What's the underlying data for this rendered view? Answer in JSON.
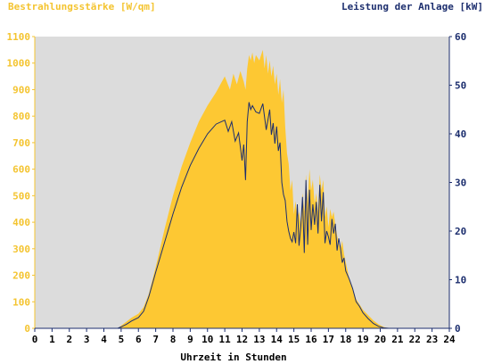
{
  "header": {
    "left_axis_title": "Bestrahlungsstärke [W/qm]",
    "right_axis_title": "Leistung der Anlage [kW]"
  },
  "chart_data": {
    "type": "area",
    "xlabel": "Uhrzeit in Stunden",
    "ylabel_left": "Bestrahlungsstärke [W/qm]",
    "ylabel_right": "Leistung der Anlage [kW]",
    "xlim": [
      0,
      24
    ],
    "ylim_left": [
      0,
      1100
    ],
    "ylim_right": [
      0,
      60
    ],
    "x_ticks": [
      "0",
      "1",
      "2",
      "3",
      "4",
      "5",
      "6",
      "7",
      "8",
      "9",
      "10",
      "11",
      "12",
      "13",
      "14",
      "15",
      "16",
      "17",
      "18",
      "19",
      "20",
      "21",
      "22",
      "23",
      "24"
    ],
    "y_ticks_left": [
      "0",
      "100",
      "200",
      "300",
      "400",
      "500",
      "600",
      "700",
      "800",
      "900",
      "1000",
      "1100"
    ],
    "y_ticks_right": [
      "0",
      "10",
      "20",
      "30",
      "40",
      "50",
      "60"
    ],
    "grid": false,
    "colors": {
      "plot_bg": "#dcdcdc",
      "irradiance": "#fdc833",
      "power": "#1c2e6e",
      "left_axis": "#f4c430",
      "right_axis": "#1c2e6e"
    },
    "series": [
      {
        "name": "Bestrahlungsstärke [W/qm]",
        "axis": "left",
        "x": [
          0,
          4.8,
          5.0,
          5.3,
          5.6,
          6.0,
          6.3,
          6.6,
          7.0,
          7.5,
          8.0,
          8.5,
          9.0,
          9.5,
          10.0,
          10.5,
          11.0,
          11.3,
          11.5,
          11.7,
          11.9,
          12.1,
          12.2,
          12.3,
          12.4,
          12.5,
          12.6,
          12.7,
          12.8,
          13.0,
          13.2,
          13.3,
          13.4,
          13.5,
          13.6,
          13.7,
          13.8,
          13.9,
          14.0,
          14.1,
          14.2,
          14.3,
          14.4,
          14.5,
          14.6,
          14.7,
          14.8,
          14.9,
          15.0,
          15.1,
          15.2,
          15.3,
          15.4,
          15.5,
          15.6,
          15.7,
          15.8,
          15.9,
          16.0,
          16.1,
          16.2,
          16.3,
          16.4,
          16.5,
          16.6,
          16.7,
          16.8,
          16.9,
          17.0,
          17.1,
          17.2,
          17.3,
          17.4,
          17.5,
          17.6,
          17.7,
          17.8,
          17.9,
          18.0,
          18.2,
          18.4,
          18.6,
          18.8,
          19.0,
          19.3,
          19.6,
          19.9,
          20.2,
          20.5,
          21.0,
          24.0
        ],
        "values": [
          0,
          0,
          10,
          25,
          40,
          55,
          80,
          130,
          230,
          370,
          500,
          610,
          700,
          780,
          840,
          890,
          950,
          900,
          960,
          920,
          970,
          930,
          900,
          980,
          1030,
          1010,
          1040,
          1000,
          1030,
          1010,
          1050,
          980,
          1030,
          960,
          1010,
          950,
          990,
          920,
          960,
          880,
          940,
          850,
          900,
          760,
          660,
          620,
          520,
          560,
          430,
          480,
          410,
          440,
          390,
          510,
          440,
          580,
          470,
          600,
          520,
          560,
          470,
          510,
          440,
          580,
          520,
          560,
          420,
          460,
          380,
          450,
          420,
          440,
          390,
          350,
          320,
          300,
          330,
          280,
          250,
          190,
          150,
          110,
          90,
          70,
          50,
          30,
          15,
          5,
          0,
          0,
          0
        ]
      },
      {
        "name": "Leistung der Anlage [kW]",
        "axis": "right",
        "x": [
          0,
          4.8,
          5.0,
          5.3,
          5.6,
          6.0,
          6.3,
          6.6,
          7.0,
          7.5,
          8.0,
          8.5,
          9.0,
          9.5,
          10.0,
          10.5,
          11.0,
          11.2,
          11.4,
          11.6,
          11.8,
          12.0,
          12.1,
          12.2,
          12.3,
          12.4,
          12.5,
          12.6,
          12.8,
          13.0,
          13.2,
          13.4,
          13.6,
          13.7,
          13.8,
          13.9,
          14.0,
          14.1,
          14.2,
          14.3,
          14.4,
          14.5,
          14.6,
          14.7,
          14.8,
          14.9,
          15.0,
          15.1,
          15.2,
          15.3,
          15.4,
          15.5,
          15.6,
          15.7,
          15.8,
          15.9,
          16.0,
          16.1,
          16.2,
          16.3,
          16.4,
          16.5,
          16.6,
          16.7,
          16.8,
          16.9,
          17.0,
          17.1,
          17.2,
          17.3,
          17.4,
          17.5,
          17.6,
          17.7,
          17.8,
          17.9,
          18.0,
          18.2,
          18.4,
          18.6,
          18.8,
          19.0,
          19.3,
          19.6,
          19.9,
          20.2,
          20.5,
          21.0,
          24.0
        ],
        "values": [
          0,
          0,
          0.3,
          0.8,
          1.5,
          2.2,
          3.5,
          6.5,
          11.5,
          17.5,
          23.5,
          29.0,
          33.5,
          37.0,
          40.0,
          42.0,
          42.8,
          40.5,
          42.5,
          38.5,
          40.2,
          34.5,
          37.8,
          30.5,
          42.5,
          46.5,
          45.0,
          45.8,
          44.5,
          44.2,
          46.2,
          40.8,
          45.0,
          39.8,
          42.2,
          38.0,
          41.5,
          36.5,
          38.2,
          30.0,
          27.5,
          26.3,
          22.0,
          20.0,
          18.5,
          17.8,
          19.8,
          17.5,
          25.5,
          17.0,
          21.0,
          27.0,
          15.5,
          30.5,
          17.2,
          28.5,
          20.2,
          25.5,
          21.3,
          26.0,
          19.5,
          29.5,
          22.0,
          28.0,
          17.5,
          20.0,
          18.8,
          17.2,
          22.5,
          19.5,
          21.5,
          16.0,
          18.5,
          16.5,
          13.5,
          14.5,
          11.8,
          10.2,
          8.2,
          5.5,
          4.5,
          3.2,
          2.0,
          1.0,
          0.4,
          0.1,
          0,
          0,
          0
        ]
      }
    ]
  }
}
